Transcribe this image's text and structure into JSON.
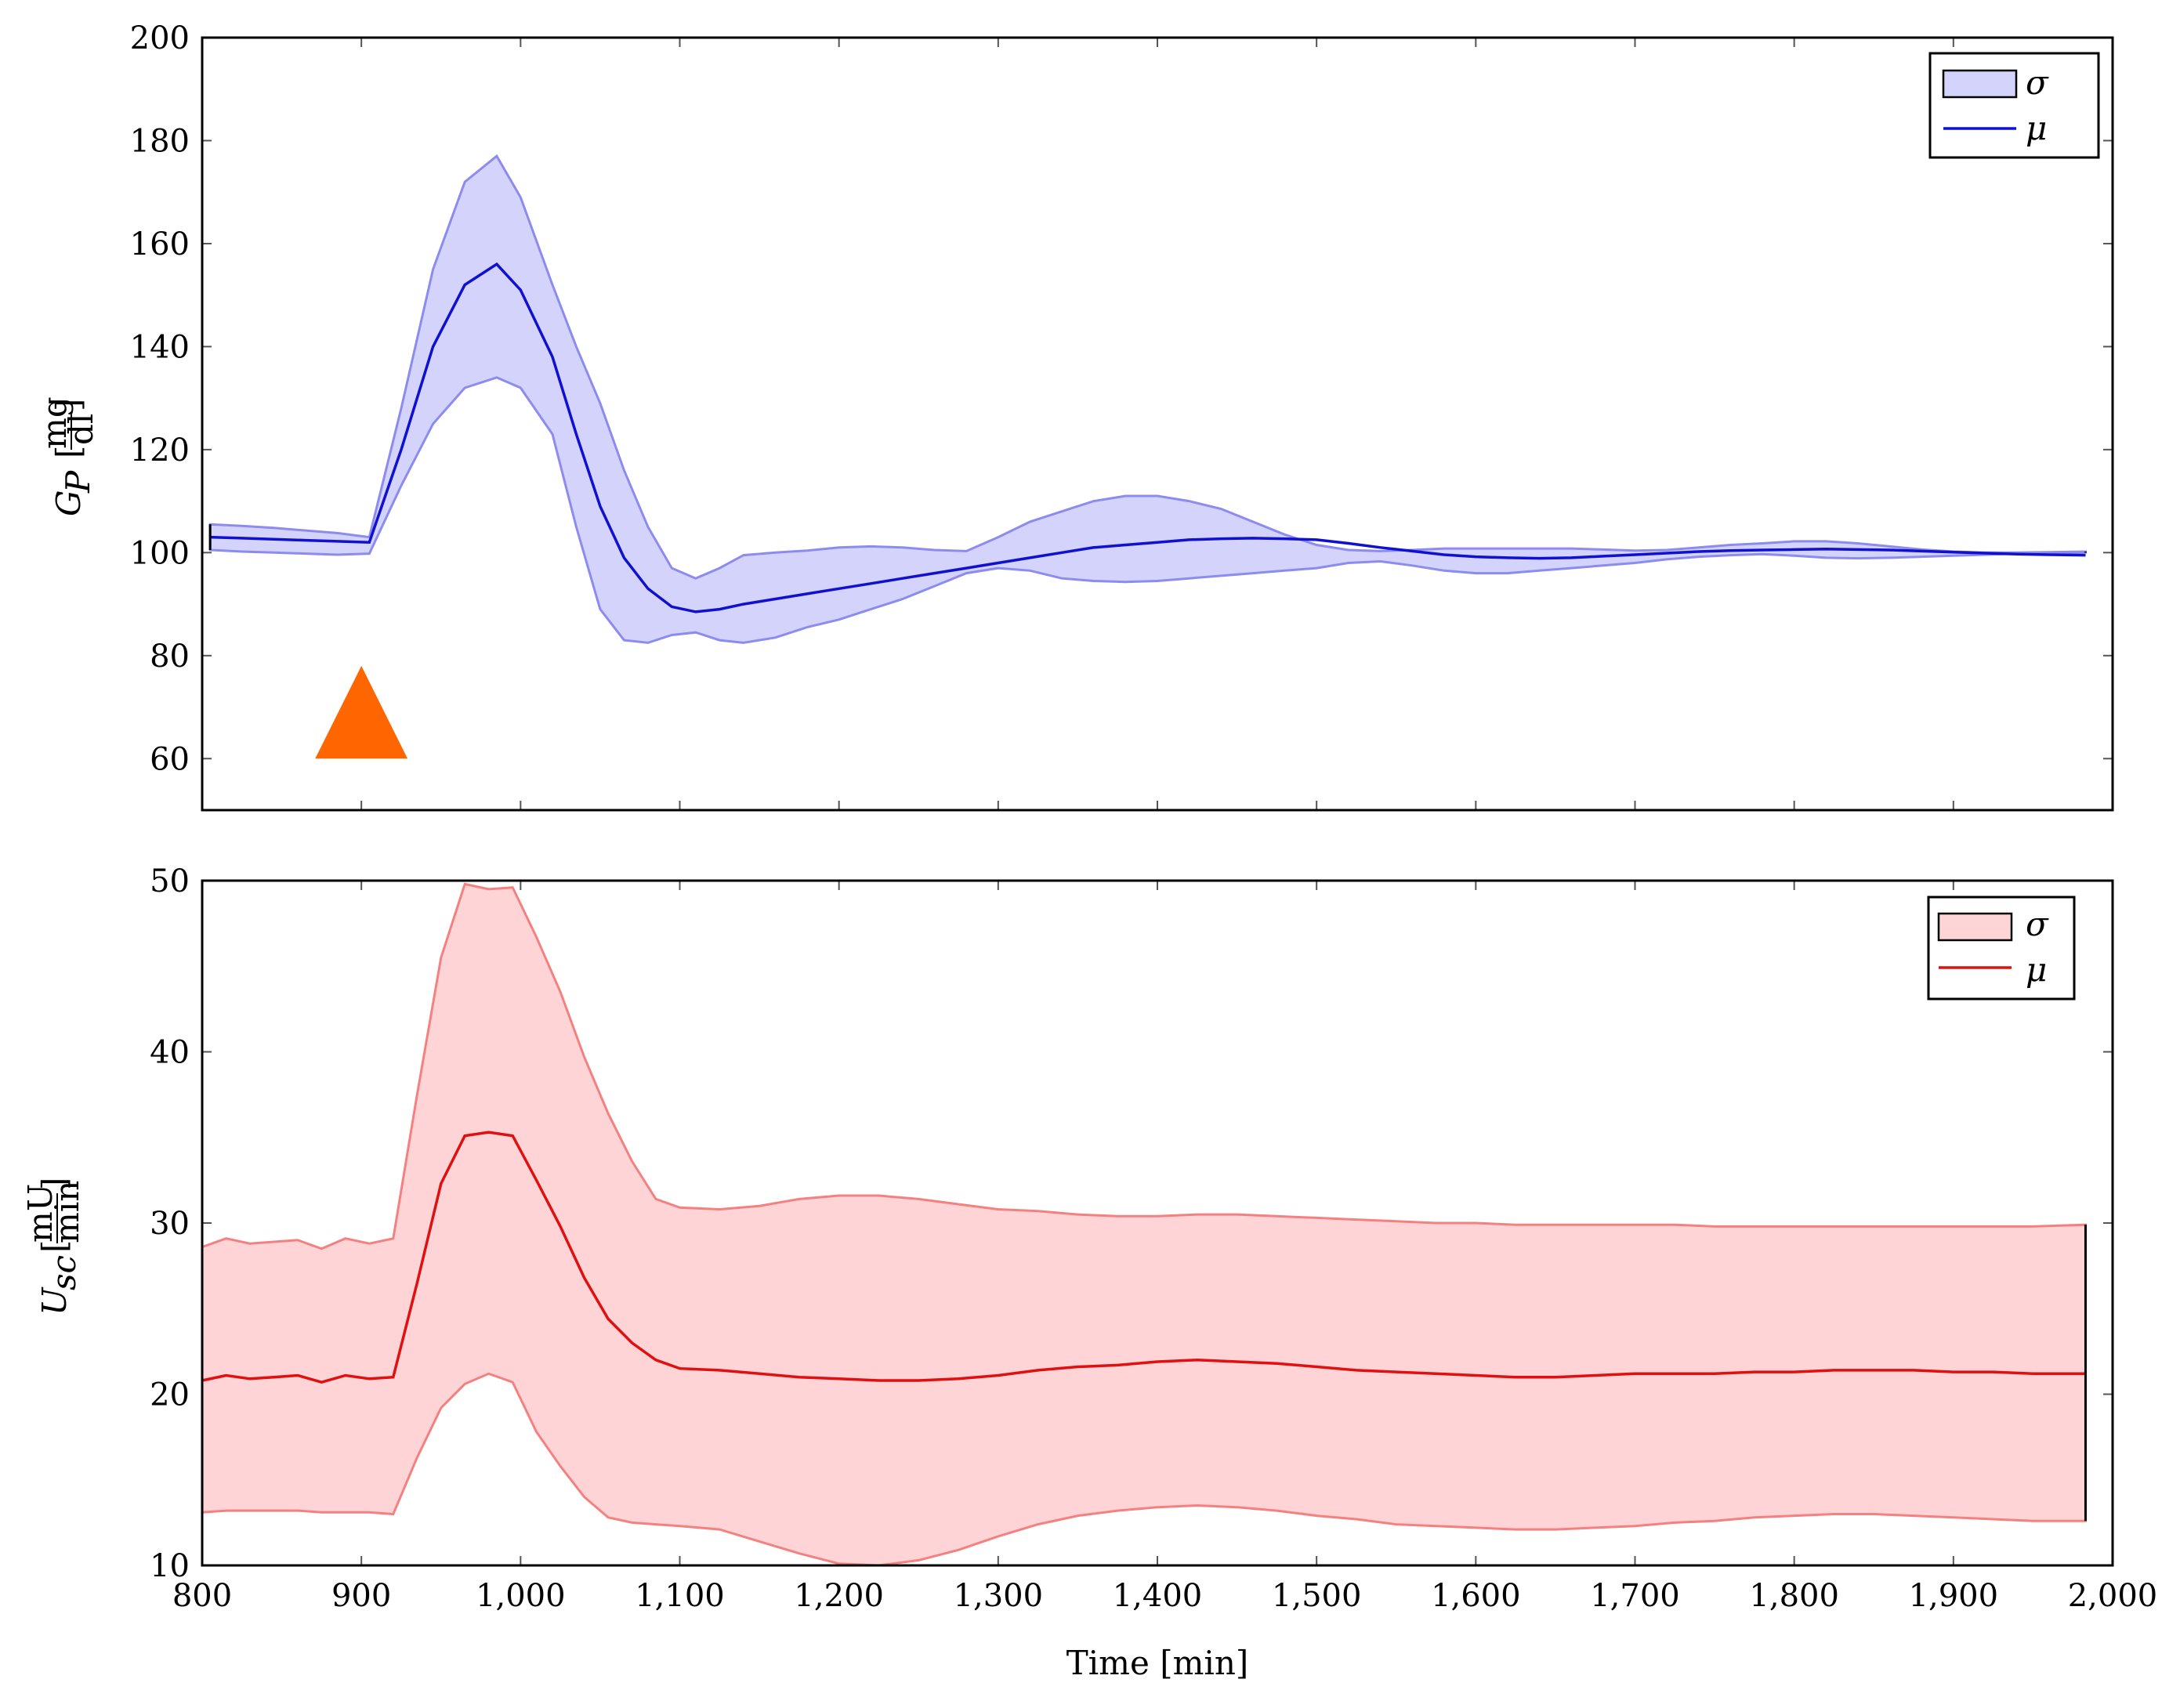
{
  "chart_data": [
    {
      "type": "area",
      "ylim": [
        50,
        200
      ],
      "xlim": [
        800,
        2000
      ],
      "yticks": [
        "60",
        "80",
        "100",
        "120",
        "140",
        "160",
        "180",
        "200"
      ],
      "ylabel": {
        "main": "G",
        "sub": "P",
        "unit_num": "mg",
        "unit_den": "dl"
      },
      "colors": {
        "line": "#1010d0",
        "band_fill": "#d3d3fb",
        "band_edge": "#8c8cf0"
      },
      "legend": {
        "position": "top-right",
        "band": "σ",
        "line": "μ"
      },
      "marker": {
        "shape": "triangle",
        "x": 900,
        "y_base": 60,
        "y_top": 78,
        "color": "#ff6600",
        "half_width_x": 29
      },
      "x": [
        805,
        825,
        845,
        865,
        885,
        905,
        925,
        945,
        965,
        985,
        1000,
        1020,
        1035,
        1050,
        1065,
        1080,
        1095,
        1110,
        1125,
        1140,
        1160,
        1180,
        1200,
        1220,
        1240,
        1260,
        1280,
        1300,
        1320,
        1340,
        1360,
        1380,
        1400,
        1420,
        1440,
        1460,
        1480,
        1500,
        1520,
        1540,
        1560,
        1580,
        1600,
        1620,
        1640,
        1660,
        1680,
        1700,
        1720,
        1740,
        1760,
        1780,
        1800,
        1820,
        1840,
        1860,
        1880,
        1900,
        1920,
        1940,
        1960,
        1983
      ],
      "series": [
        {
          "role": "mean",
          "values": [
            103,
            102.8,
            102.6,
            102.4,
            102.2,
            102,
            120,
            140,
            152,
            156,
            151,
            138,
            123,
            109,
            99,
            93,
            89.5,
            88.5,
            89,
            90,
            91,
            92,
            93,
            94,
            95,
            96,
            97,
            98,
            99,
            100,
            101,
            101.5,
            102,
            102.5,
            102.7,
            102.8,
            102.7,
            102.5,
            101.8,
            101,
            100.3,
            99.6,
            99.2,
            99.0,
            98.9,
            99.0,
            99.3,
            99.6,
            99.9,
            100.2,
            100.4,
            100.5,
            100.6,
            100.7,
            100.6,
            100.5,
            100.3,
            100.1,
            99.9,
            99.7,
            99.6,
            99.5
          ]
        },
        {
          "role": "upper",
          "values": [
            105.5,
            105.2,
            104.8,
            104.3,
            103.8,
            103,
            128,
            155,
            172,
            177,
            169,
            152,
            140,
            129,
            116,
            105,
            97,
            95,
            97,
            99.5,
            100,
            100.4,
            101,
            101.2,
            101,
            100.5,
            100.3,
            103,
            106,
            108,
            110,
            111,
            111,
            110,
            108.5,
            106,
            103.5,
            101.5,
            100.5,
            100.3,
            100.5,
            100.8,
            100.8,
            100.8,
            100.8,
            100.8,
            100.6,
            100.4,
            100.5,
            101,
            101.5,
            101.8,
            102.2,
            102.2,
            101.8,
            101.2,
            100.6,
            100.2,
            100.0,
            100.0,
            100.1,
            100.2
          ]
        },
        {
          "role": "lower",
          "values": [
            100.5,
            100.2,
            100,
            99.8,
            99.6,
            99.8,
            113,
            125,
            132,
            134,
            132,
            123,
            105,
            89,
            83,
            82.5,
            84,
            84.5,
            83,
            82.5,
            83.5,
            85.5,
            87,
            89,
            91,
            93.5,
            96,
            97,
            96.5,
            95,
            94.5,
            94.3,
            94.5,
            95,
            95.5,
            96,
            96.5,
            97,
            98,
            98.3,
            97.5,
            96.5,
            96,
            96,
            96.5,
            97,
            97.5,
            98,
            98.7,
            99.2,
            99.5,
            99.7,
            99.4,
            99.0,
            98.9,
            99.0,
            99.2,
            99.4,
            99.6,
            99.8,
            99.9,
            100.0
          ]
        }
      ]
    },
    {
      "type": "area",
      "ylim": [
        10,
        50
      ],
      "xlim": [
        800,
        2000
      ],
      "yticks": [
        "10",
        "20",
        "30",
        "40",
        "50"
      ],
      "xticks": [
        "800",
        "900",
        "1,000",
        "1,100",
        "1,200",
        "1,300",
        "1,400",
        "1,500",
        "1,600",
        "1,700",
        "1,800",
        "1,900",
        "2,000"
      ],
      "xlabel": "Time [min]",
      "ylabel": {
        "main": "U",
        "sub": "sc",
        "unit_num": "mU",
        "unit_den": "min"
      },
      "colors": {
        "line": "#e01010",
        "band_fill": "#ffd4d6",
        "band_edge": "#f58080"
      },
      "legend": {
        "position": "top-right",
        "band": "σ",
        "line": "μ"
      },
      "x": [
        800,
        815,
        830,
        845,
        860,
        875,
        890,
        905,
        920,
        935,
        950,
        965,
        980,
        995,
        1010,
        1025,
        1040,
        1055,
        1070,
        1085,
        1100,
        1125,
        1150,
        1175,
        1200,
        1225,
        1250,
        1275,
        1300,
        1325,
        1350,
        1375,
        1400,
        1425,
        1450,
        1475,
        1500,
        1525,
        1550,
        1575,
        1600,
        1625,
        1650,
        1675,
        1700,
        1725,
        1750,
        1775,
        1800,
        1825,
        1850,
        1875,
        1900,
        1925,
        1950,
        1983
      ],
      "series": [
        {
          "role": "mean",
          "values": [
            20.8,
            21.1,
            20.9,
            21.0,
            21.1,
            20.7,
            21.1,
            20.9,
            21.0,
            26.5,
            32.3,
            35.1,
            35.3,
            35.1,
            32.5,
            29.8,
            26.8,
            24.4,
            23.0,
            22.0,
            21.5,
            21.4,
            21.2,
            21.0,
            20.9,
            20.8,
            20.8,
            20.9,
            21.1,
            21.4,
            21.6,
            21.7,
            21.9,
            22.0,
            21.9,
            21.8,
            21.6,
            21.4,
            21.3,
            21.2,
            21.1,
            21.0,
            21.0,
            21.1,
            21.2,
            21.2,
            21.2,
            21.3,
            21.3,
            21.4,
            21.4,
            21.4,
            21.3,
            21.3,
            21.2,
            21.2
          ]
        },
        {
          "role": "upper",
          "values": [
            28.6,
            29.1,
            28.8,
            28.9,
            29.0,
            28.5,
            29.1,
            28.8,
            29.1,
            37.5,
            45.5,
            49.8,
            49.5,
            49.6,
            46.7,
            43.5,
            39.7,
            36.4,
            33.6,
            31.4,
            30.9,
            30.8,
            31.0,
            31.4,
            31.6,
            31.6,
            31.4,
            31.1,
            30.8,
            30.7,
            30.5,
            30.4,
            30.4,
            30.5,
            30.5,
            30.4,
            30.3,
            30.2,
            30.1,
            30.0,
            30.0,
            29.9,
            29.9,
            29.9,
            29.9,
            29.9,
            29.8,
            29.8,
            29.8,
            29.8,
            29.8,
            29.8,
            29.8,
            29.8,
            29.8,
            29.9
          ]
        },
        {
          "role": "lower",
          "values": [
            13.1,
            13.2,
            13.2,
            13.2,
            13.2,
            13.1,
            13.1,
            13.1,
            13.0,
            16.3,
            19.2,
            20.6,
            21.2,
            20.7,
            17.8,
            15.8,
            14.0,
            12.8,
            12.5,
            12.4,
            12.3,
            12.1,
            11.4,
            10.7,
            10.1,
            10.0,
            10.3,
            10.9,
            11.7,
            12.4,
            12.9,
            13.2,
            13.4,
            13.5,
            13.4,
            13.2,
            12.9,
            12.7,
            12.4,
            12.3,
            12.2,
            12.1,
            12.1,
            12.2,
            12.3,
            12.5,
            12.6,
            12.8,
            12.9,
            13.0,
            13.0,
            12.9,
            12.8,
            12.7,
            12.6,
            12.6
          ]
        }
      ]
    }
  ]
}
